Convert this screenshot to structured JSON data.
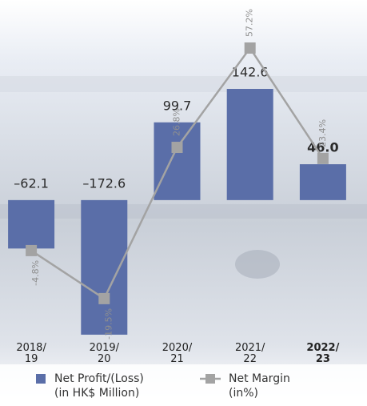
{
  "chart_data": {
    "type": "bar_line",
    "categories": [
      "2018/\n19",
      "2019/\n20",
      "2020/\n21",
      "2021/\n22",
      "2022/\n23"
    ],
    "highlight_index": 4,
    "series": [
      {
        "name": "Net Profit/(Loss)\n(in HK$ Million)",
        "type": "bar",
        "color": "#5a6ea8",
        "values": [
          -62.1,
          -172.6,
          99.7,
          142.6,
          46.0
        ],
        "value_labels": [
          "–62.1",
          "–172.6",
          "99.7",
          "142.6",
          "46.0"
        ]
      },
      {
        "name": "Net Margin\n(in%)",
        "type": "line",
        "color": "#a3a3a3",
        "axis": "y2",
        "values": [
          -4.8,
          -19.5,
          26.8,
          57.2,
          23.4
        ],
        "value_labels": [
          "-4.8%",
          "-19.5%",
          "26.8%",
          "57.2%",
          "23.4%"
        ]
      }
    ],
    "ylim": [
      -185,
      195
    ],
    "y2lim": [
      -33.5,
      57.2
    ],
    "grid": false
  }
}
